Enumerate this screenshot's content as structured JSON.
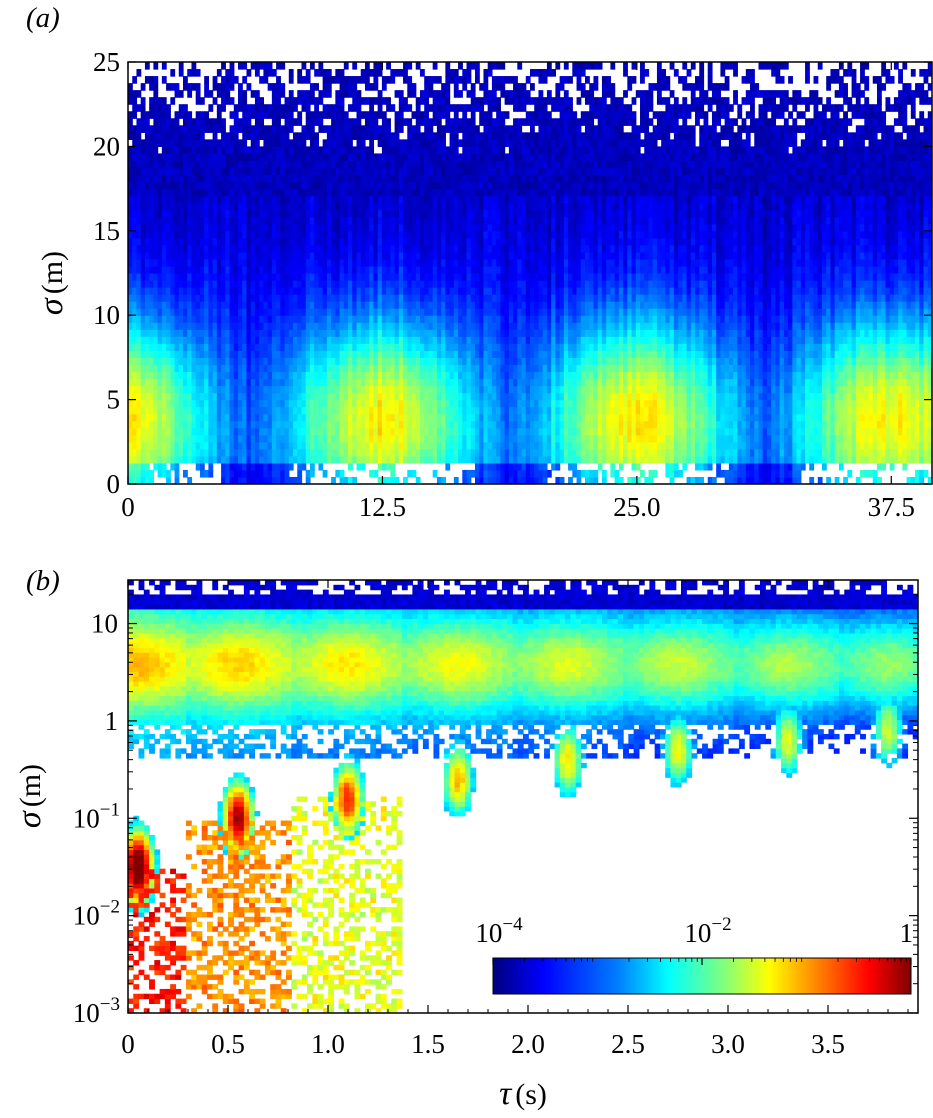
{
  "chart_data": [
    {
      "type": "heatmap",
      "panel_label": "(a)",
      "ylabel_symbol": "σ",
      "ylabel_unit": "(m)",
      "xlabel": "",
      "xlim": [
        0,
        39.5
      ],
      "ylim": [
        0,
        25
      ],
      "xticks": [
        0,
        12.5,
        25.0,
        37.5
      ],
      "xtick_labels": [
        "0",
        "12.5",
        "25.0",
        "37.5"
      ],
      "yticks": [
        0,
        5,
        10,
        15,
        20,
        25
      ],
      "ytick_labels": [
        "0",
        "5",
        "10",
        "15",
        "20",
        "25"
      ],
      "periodic_blobs_center_tau": [
        12.5,
        25.0,
        37.5
      ],
      "blob_center_sigma": 4,
      "description_values": "log-density (10^-4 to 1) of sigma vs tau; maxima near sigma 3-5 m, repeating every ~12.5 s"
    },
    {
      "type": "heatmap",
      "panel_label": "(b)",
      "ylabel_symbol": "σ",
      "ylabel_unit": "(m)",
      "xlabel_symbol": "τ",
      "xlabel_unit": "(s)",
      "xlim": [
        0,
        3.95
      ],
      "ylim": [
        0.001,
        28
      ],
      "yscale": "log",
      "xticks": [
        0,
        0.5,
        1.0,
        1.5,
        2.0,
        2.5,
        3.0,
        3.5
      ],
      "xtick_labels": [
        "0",
        "0.5",
        "1.0",
        "1.5",
        "2.0",
        "2.5",
        "3.0",
        "3.5"
      ],
      "yticks": [
        0.001,
        0.01,
        0.1,
        1,
        10
      ],
      "ytick_labels": [
        {
          "base": "10",
          "exp": "−3"
        },
        {
          "base": "10",
          "exp": "−2"
        },
        {
          "base": "10",
          "exp": "−1"
        },
        {
          "base": "1",
          "exp": ""
        },
        {
          "base": "10",
          "exp": ""
        }
      ],
      "periodic_blobs_center_tau": [
        0.05,
        0.55,
        1.1,
        1.65,
        2.2,
        2.75,
        3.3,
        3.8
      ],
      "colorbar": {
        "scale": "log",
        "range": [
          0.0001,
          1
        ],
        "tick_labels": [
          {
            "base": "10",
            "exp": "−4"
          },
          {
            "base": "10",
            "exp": "−2"
          },
          {
            "base": "1",
            "exp": ""
          }
        ],
        "colors": [
          "#00007f",
          "#0000ff",
          "#007fff",
          "#00ffff",
          "#7fff7f",
          "#ffff00",
          "#ff7f00",
          "#ff0000",
          "#7f0000"
        ]
      }
    }
  ]
}
